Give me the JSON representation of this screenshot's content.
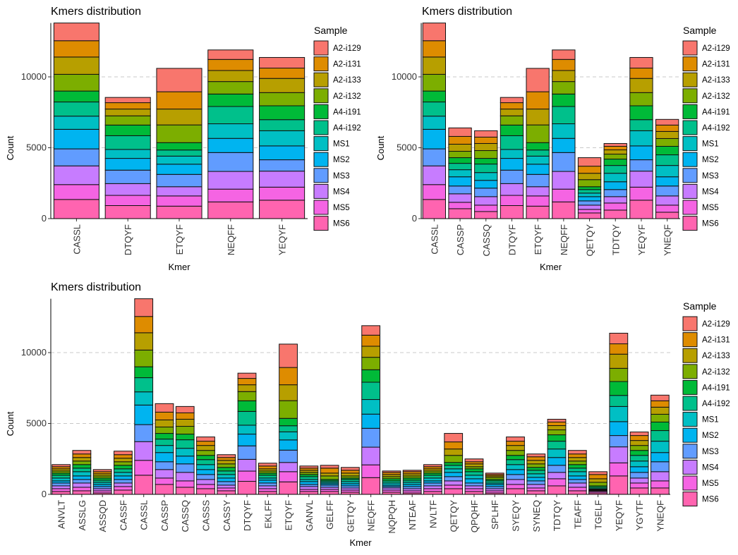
{
  "chart_data": {
    "samples": [
      "A2-i129",
      "A2-i131",
      "A2-i133",
      "A2-i132",
      "A4-i191",
      "A4-i192",
      "MS1",
      "MS2",
      "MS3",
      "MS4",
      "MS5",
      "MS6"
    ],
    "colors": [
      "#F8766D",
      "#DE8C00",
      "#B79F00",
      "#7CAE00",
      "#00BA38",
      "#00C08B",
      "#00BFC4",
      "#00B4F0",
      "#619CFF",
      "#C77CFF",
      "#F564E3",
      "#FF64B0"
    ],
    "kmer_values": {
      "ANVLT": [
        150,
        150,
        150,
        150,
        150,
        200,
        200,
        150,
        200,
        200,
        200,
        200
      ],
      "ASSLG": [
        250,
        250,
        250,
        250,
        250,
        250,
        300,
        250,
        250,
        300,
        250,
        250
      ],
      "ASSQD": [
        150,
        150,
        150,
        150,
        150,
        150,
        150,
        150,
        150,
        150,
        150,
        100
      ],
      "CASSF": [
        250,
        250,
        250,
        250,
        250,
        250,
        250,
        250,
        250,
        250,
        250,
        300
      ],
      "CASSL": [
        1250,
        1150,
        1220,
        1180,
        770,
        1000,
        930,
        1380,
        1200,
        1320,
        1050,
        1350
      ],
      "CASSP": [
        600,
        550,
        500,
        450,
        400,
        450,
        500,
        650,
        550,
        600,
        450,
        700
      ],
      "CASSQ": [
        450,
        450,
        500,
        550,
        400,
        600,
        550,
        550,
        600,
        600,
        450,
        500
      ],
      "CASSS": [
        300,
        300,
        350,
        350,
        300,
        350,
        350,
        350,
        350,
        350,
        300,
        400
      ],
      "CASSY": [
        200,
        200,
        250,
        250,
        250,
        250,
        250,
        250,
        250,
        200,
        200,
        250
      ],
      "DTQYF": [
        370,
        450,
        480,
        650,
        750,
        970,
        630,
        830,
        950,
        830,
        720,
        920
      ],
      "EKLFF": [
        200,
        200,
        150,
        150,
        150,
        200,
        150,
        200,
        200,
        200,
        200,
        200
      ],
      "ETQYF": [
        1650,
        1220,
        1120,
        1250,
        520,
        430,
        570,
        720,
        870,
        650,
        720,
        880
      ],
      "GANVL": [
        150,
        150,
        150,
        150,
        150,
        200,
        150,
        200,
        150,
        200,
        150,
        200
      ],
      "GELFF": [
        200,
        350,
        200,
        250,
        100,
        100,
        100,
        100,
        150,
        150,
        150,
        200
      ],
      "GETQY": [
        200,
        200,
        200,
        150,
        100,
        150,
        150,
        150,
        150,
        150,
        150,
        150
      ],
      "NEQFF": [
        670,
        780,
        780,
        880,
        880,
        1220,
        1030,
        1000,
        1330,
        1250,
        900,
        1180
      ],
      "NQPQH": [
        100,
        150,
        150,
        150,
        150,
        150,
        150,
        100,
        100,
        150,
        150,
        150
      ],
      "NTEAF": [
        100,
        150,
        150,
        150,
        150,
        150,
        150,
        150,
        150,
        150,
        150,
        100
      ],
      "NVLTF": [
        150,
        150,
        150,
        150,
        150,
        200,
        200,
        150,
        200,
        200,
        200,
        200
      ],
      "QETQY": [
        600,
        500,
        450,
        500,
        200,
        250,
        250,
        300,
        300,
        300,
        250,
        400
      ],
      "QPQHF": [
        200,
        150,
        200,
        150,
        200,
        250,
        250,
        300,
        200,
        200,
        200,
        200
      ],
      "SPLHF": [
        100,
        100,
        100,
        150,
        100,
        150,
        100,
        150,
        150,
        150,
        150,
        100
      ],
      "SYEQY": [
        300,
        300,
        350,
        350,
        300,
        350,
        350,
        350,
        350,
        350,
        300,
        400
      ],
      "SYNEQ": [
        200,
        250,
        250,
        250,
        200,
        250,
        250,
        250,
        250,
        250,
        200,
        250
      ],
      "TDTQY": [
        200,
        250,
        300,
        350,
        450,
        550,
        600,
        550,
        500,
        450,
        500,
        600
      ],
      "TEAFF": [
        250,
        250,
        250,
        250,
        250,
        250,
        300,
        250,
        250,
        300,
        250,
        250
      ],
      "TGELF": [
        200,
        300,
        250,
        250,
        100,
        100,
        50,
        50,
        50,
        50,
        100,
        100
      ],
      "YEQYF": [
        750,
        730,
        1000,
        930,
        980,
        780,
        1070,
        980,
        800,
        1130,
        920,
        1300
      ],
      "YGYTF": [
        250,
        350,
        350,
        350,
        350,
        400,
        400,
        400,
        400,
        350,
        350,
        450
      ],
      "YNEQF": [
        400,
        450,
        500,
        550,
        600,
        750,
        800,
        650,
        700,
        650,
        500,
        450
      ]
    },
    "charts": [
      {
        "type": "bar",
        "stacked": true,
        "title": "Kmers distribution",
        "xlabel": "Kmer",
        "ylabel": "Count",
        "legend_title": "Sample",
        "legend": "right",
        "ylim": [
          0,
          13800
        ],
        "yticks": [
          0,
          5000,
          10000
        ],
        "gridlines": [
          5000,
          10000
        ],
        "categories": [
          "CASSL",
          "DTQYF",
          "ETQYF",
          "NEQFF",
          "YEQYF"
        ]
      },
      {
        "type": "bar",
        "stacked": true,
        "title": "Kmers distribution",
        "xlabel": "Kmer",
        "ylabel": "Count",
        "legend_title": "Sample",
        "legend": "right",
        "ylim": [
          0,
          13800
        ],
        "yticks": [
          0,
          5000,
          10000
        ],
        "gridlines": [
          5000,
          10000
        ],
        "categories": [
          "CASSL",
          "CASSP",
          "CASSQ",
          "DTQYF",
          "ETQYF",
          "NEQFF",
          "QETQY",
          "TDTQY",
          "YEQYF",
          "YNEQF"
        ]
      },
      {
        "type": "bar",
        "stacked": true,
        "title": "Kmers distribution",
        "xlabel": "Kmer",
        "ylabel": "Count",
        "legend_title": "Sample",
        "legend": "right",
        "ylim": [
          0,
          13800
        ],
        "yticks": [
          0,
          5000,
          10000
        ],
        "gridlines": [
          5000,
          10000
        ],
        "categories": [
          "ANVLT",
          "ASSLG",
          "ASSQD",
          "CASSF",
          "CASSL",
          "CASSP",
          "CASSQ",
          "CASSS",
          "CASSY",
          "DTQYF",
          "EKLFF",
          "ETQYF",
          "GANVL",
          "GELFF",
          "GETQY",
          "NEQFF",
          "NQPQH",
          "NTEAF",
          "NVLTF",
          "QETQY",
          "QPQHF",
          "SPLHF",
          "SYEQY",
          "SYNEQ",
          "TDTQY",
          "TEAFF",
          "TGELF",
          "YEQYF",
          "YGYTF",
          "YNEQF"
        ]
      }
    ]
  }
}
